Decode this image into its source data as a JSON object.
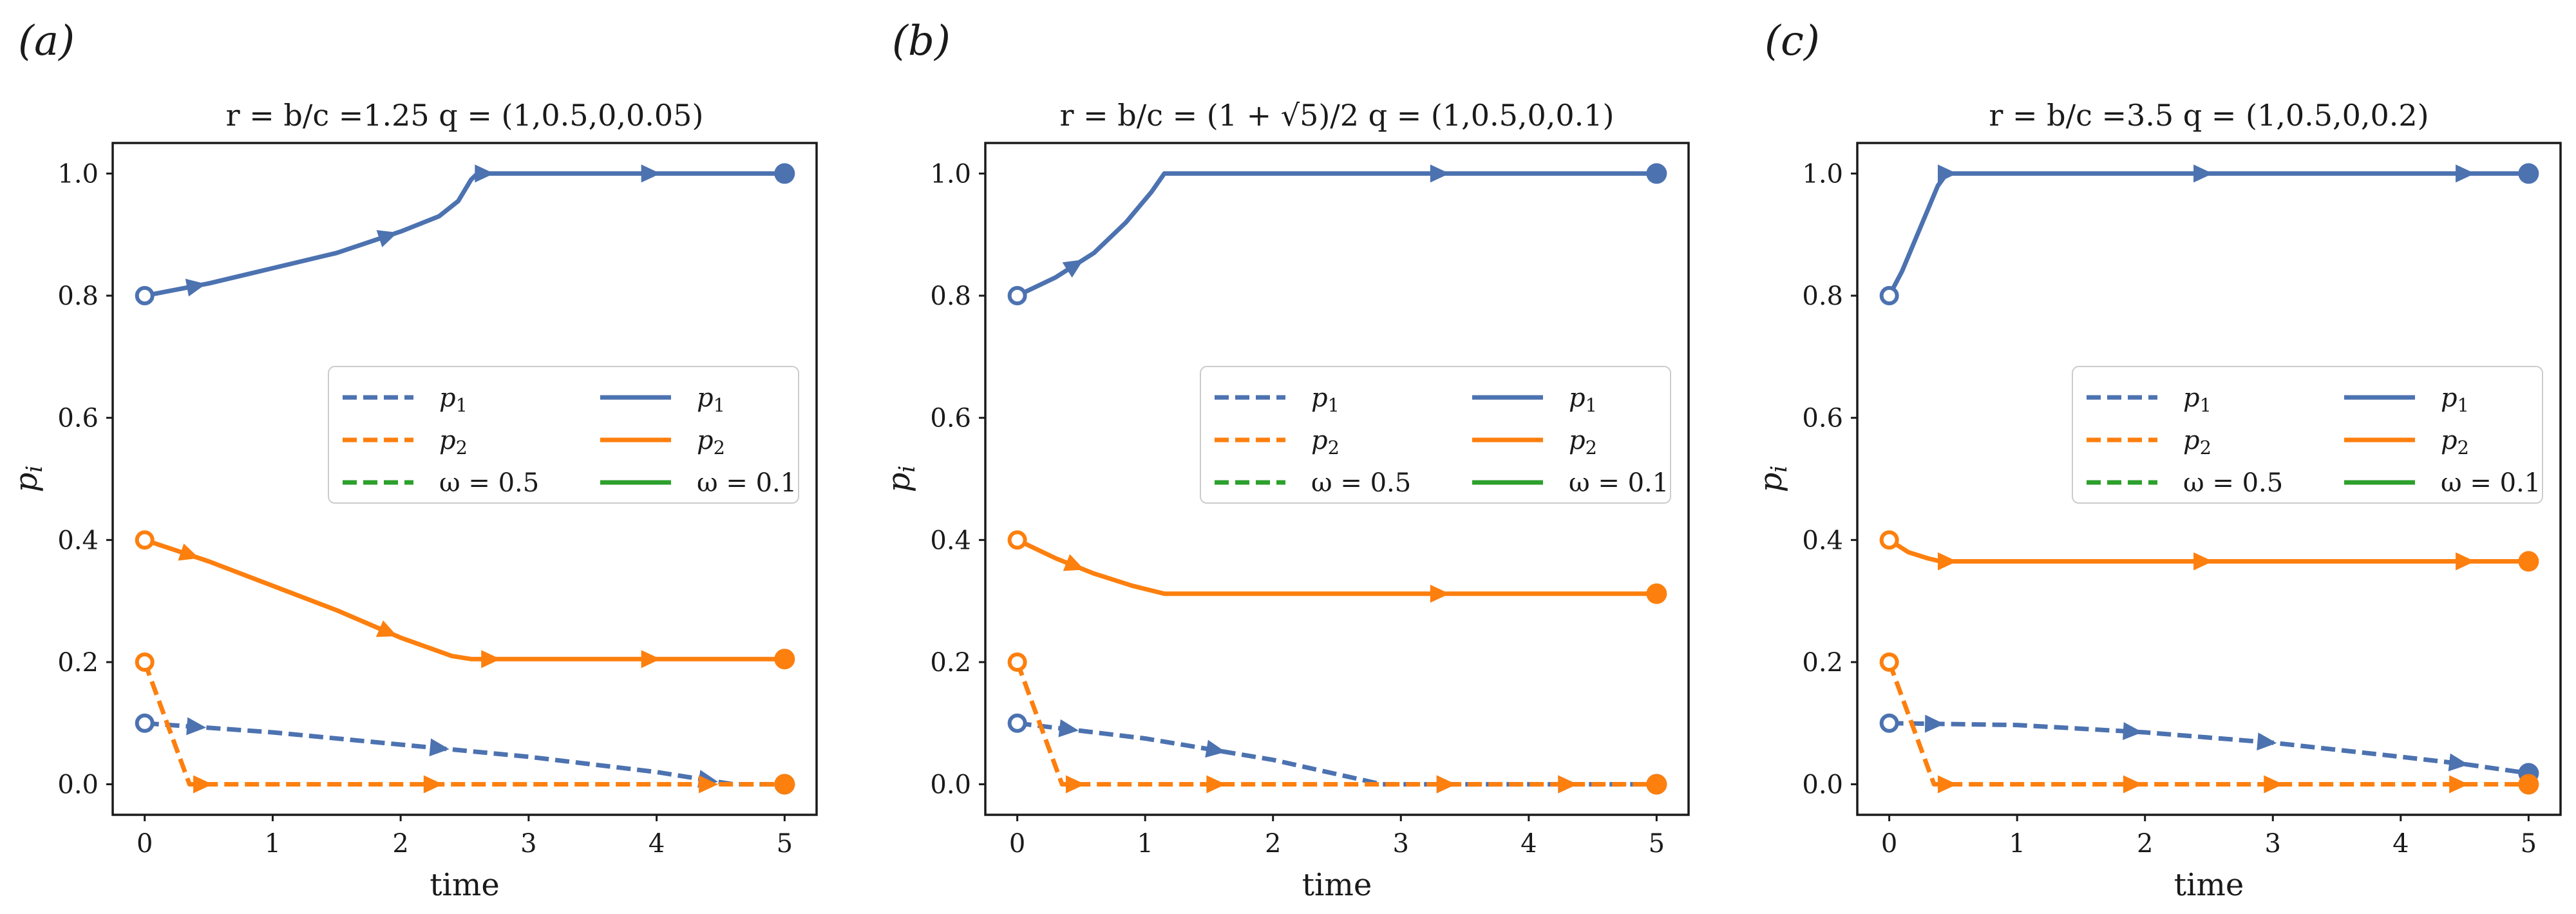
{
  "colors": {
    "blue": "#4c72b0",
    "orange": "#fd7f0e",
    "green": "#2ca02c",
    "axis": "#1a1a1a"
  },
  "chart_data": [
    {
      "type": "line",
      "panel_label": "(a)",
      "title": "r = b/c =1.25 q = (1,0.5,0,0.05)",
      "xlabel": "time",
      "ylabel": "p_i",
      "xlim": [
        -0.25,
        5.25
      ],
      "ylim": [
        -0.05,
        1.05
      ],
      "xticks": [
        0,
        1,
        2,
        3,
        4,
        5
      ],
      "yticks": [
        0.0,
        0.2,
        0.4,
        0.6,
        0.8,
        1.0
      ],
      "legend": {
        "location": "center-right",
        "entries": [
          {
            "label": "p1",
            "style": "dashed",
            "color": "blue"
          },
          {
            "label": "p1",
            "style": "solid",
            "color": "blue"
          },
          {
            "label": "p2",
            "style": "dashed",
            "color": "orange"
          },
          {
            "label": "p2",
            "style": "solid",
            "color": "orange"
          },
          {
            "label": "ω = 0.5",
            "style": "dashed",
            "color": "green"
          },
          {
            "label": "ω = 0.1",
            "style": "solid",
            "color": "green"
          }
        ]
      },
      "series": [
        {
          "name": "p1 (ω = 0.1)",
          "color": "blue",
          "style": "solid",
          "x": [
            0,
            0.5,
            1.0,
            1.5,
            2.0,
            2.3,
            2.45,
            2.55,
            2.6,
            5
          ],
          "y": [
            0.8,
            0.82,
            0.845,
            0.87,
            0.905,
            0.93,
            0.955,
            0.99,
            1.0,
            1.0
          ],
          "arrows": [
            0.4,
            1.9,
            2.65,
            3.95
          ]
        },
        {
          "name": "p2 (ω = 0.1)",
          "color": "orange",
          "style": "solid",
          "x": [
            0,
            0.5,
            1.0,
            1.5,
            2.0,
            2.4,
            2.55,
            5
          ],
          "y": [
            0.4,
            0.365,
            0.325,
            0.285,
            0.24,
            0.21,
            0.205,
            0.205
          ],
          "arrows": [
            0.35,
            1.9,
            2.7,
            3.95
          ]
        },
        {
          "name": "p1 (ω = 0.5)",
          "color": "blue",
          "style": "dashed",
          "x": [
            0,
            1.0,
            2.0,
            3.0,
            4.0,
            4.6,
            5
          ],
          "y": [
            0.1,
            0.085,
            0.065,
            0.045,
            0.02,
            0.0,
            0.0
          ],
          "arrows": [
            0.4,
            2.3,
            4.4
          ]
        },
        {
          "name": "p2 (ω = 0.5)",
          "color": "orange",
          "style": "dashed",
          "x": [
            0,
            0.35,
            5
          ],
          "y": [
            0.2,
            0.0,
            0.0
          ],
          "arrows": [
            0.45,
            2.25,
            4.4
          ]
        }
      ]
    },
    {
      "type": "line",
      "panel_label": "(b)",
      "title": "r = b/c = (1 + √5)/2 q = (1,0.5,0,0.1)",
      "xlabel": "time",
      "ylabel": "p_i",
      "xlim": [
        -0.25,
        5.25
      ],
      "ylim": [
        -0.05,
        1.05
      ],
      "xticks": [
        0,
        1,
        2,
        3,
        4,
        5
      ],
      "yticks": [
        0.0,
        0.2,
        0.4,
        0.6,
        0.8,
        1.0
      ],
      "legend": {
        "location": "center-right",
        "entries": [
          {
            "label": "p1",
            "style": "dashed",
            "color": "blue"
          },
          {
            "label": "p1",
            "style": "solid",
            "color": "blue"
          },
          {
            "label": "p2",
            "style": "dashed",
            "color": "orange"
          },
          {
            "label": "p2",
            "style": "solid",
            "color": "orange"
          },
          {
            "label": "ω = 0.5",
            "style": "dashed",
            "color": "green"
          },
          {
            "label": "ω = 0.1",
            "style": "solid",
            "color": "green"
          }
        ]
      },
      "series": [
        {
          "name": "p1 (ω = 0.1)",
          "color": "blue",
          "style": "solid",
          "x": [
            0,
            0.3,
            0.6,
            0.85,
            1.05,
            1.15,
            5
          ],
          "y": [
            0.8,
            0.83,
            0.87,
            0.92,
            0.97,
            1.0,
            1.0
          ],
          "arrows": [
            0.45,
            3.3
          ]
        },
        {
          "name": "p2 (ω = 0.1)",
          "color": "orange",
          "style": "solid",
          "x": [
            0,
            0.3,
            0.6,
            0.9,
            1.15,
            5
          ],
          "y": [
            0.4,
            0.37,
            0.345,
            0.325,
            0.312,
            0.312
          ],
          "arrows": [
            0.45,
            3.3
          ]
        },
        {
          "name": "p1 (ω = 0.5)",
          "color": "blue",
          "style": "dashed",
          "x": [
            0,
            1.0,
            2.0,
            2.85,
            5
          ],
          "y": [
            0.1,
            0.075,
            0.04,
            0.0,
            0.0
          ],
          "arrows": [
            0.4,
            1.55,
            3.35,
            4.3
          ]
        },
        {
          "name": "p2 (ω = 0.5)",
          "color": "orange",
          "style": "dashed",
          "x": [
            0,
            0.35,
            5
          ],
          "y": [
            0.2,
            0.0,
            0.0
          ],
          "arrows": [
            0.45,
            1.55,
            3.35,
            4.3
          ]
        }
      ]
    },
    {
      "type": "line",
      "panel_label": "(c)",
      "title": "r = b/c =3.5 q = (1,0.5,0,0.2)",
      "xlabel": "time",
      "ylabel": "p_i",
      "xlim": [
        -0.25,
        5.25
      ],
      "ylim": [
        -0.05,
        1.05
      ],
      "xticks": [
        0,
        1,
        2,
        3,
        4,
        5
      ],
      "yticks": [
        0.0,
        0.2,
        0.4,
        0.6,
        0.8,
        1.0
      ],
      "legend": {
        "location": "center-right",
        "entries": [
          {
            "label": "p1",
            "style": "dashed",
            "color": "blue"
          },
          {
            "label": "p1",
            "style": "solid",
            "color": "blue"
          },
          {
            "label": "p2",
            "style": "dashed",
            "color": "orange"
          },
          {
            "label": "p2",
            "style": "solid",
            "color": "orange"
          },
          {
            "label": "ω = 0.5",
            "style": "dashed",
            "color": "green"
          },
          {
            "label": "ω = 0.1",
            "style": "solid",
            "color": "green"
          }
        ]
      },
      "series": [
        {
          "name": "p1 (ω = 0.1)",
          "color": "blue",
          "style": "solid",
          "x": [
            0,
            0.1,
            0.2,
            0.3,
            0.38,
            0.45,
            5
          ],
          "y": [
            0.8,
            0.84,
            0.89,
            0.94,
            0.98,
            1.0,
            1.0
          ],
          "arrows": [
            0.45,
            2.45,
            4.5
          ]
        },
        {
          "name": "p2 (ω = 0.1)",
          "color": "orange",
          "style": "solid",
          "x": [
            0,
            0.15,
            0.3,
            0.4,
            5
          ],
          "y": [
            0.4,
            0.38,
            0.37,
            0.365,
            0.365
          ],
          "arrows": [
            0.45,
            2.45,
            4.5
          ]
        },
        {
          "name": "p1 (ω = 0.5)",
          "color": "blue",
          "style": "dashed",
          "x": [
            0,
            1.0,
            2.0,
            3.0,
            4.0,
            4.5,
            5
          ],
          "y": [
            0.1,
            0.097,
            0.085,
            0.068,
            0.045,
            0.033,
            0.018
          ],
          "arrows": [
            0.35,
            1.9,
            2.95,
            4.45
          ]
        },
        {
          "name": "p2 (ω = 0.5)",
          "color": "orange",
          "style": "dashed",
          "x": [
            0,
            0.35,
            5
          ],
          "y": [
            0.2,
            0.0,
            0.0
          ],
          "arrows": [
            0.45,
            1.9,
            3.0,
            4.45
          ]
        }
      ]
    }
  ]
}
